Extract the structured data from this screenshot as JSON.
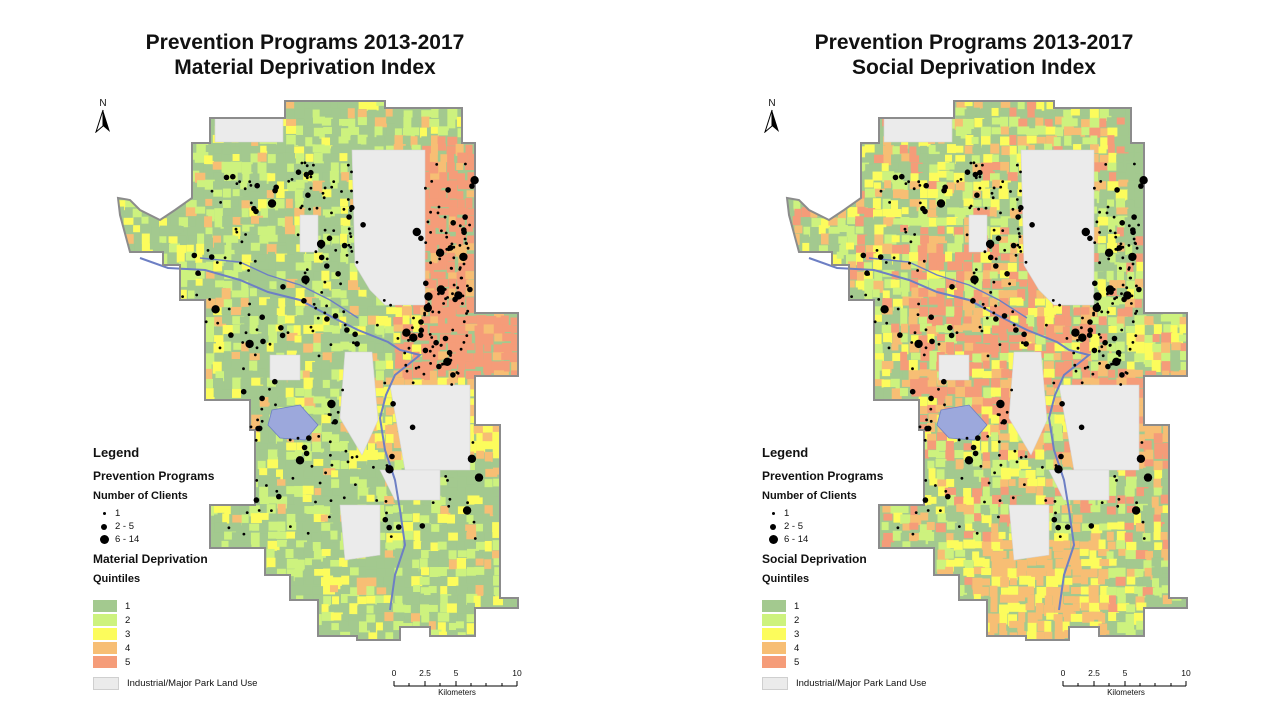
{
  "maps": [
    {
      "title_line1": "Prevention Programs 2013-2017",
      "title_line2": "Material Deprivation Index",
      "north_label": "N",
      "legend": {
        "title": "Legend",
        "layer": "Prevention Programs",
        "clients_label": "Number of Clients",
        "client_classes": [
          "1",
          "2 - 5",
          "6 - 14"
        ],
        "index_label": "Material Deprivation",
        "quintile_label": "Quintiles",
        "quintiles": [
          "1",
          "2",
          "3",
          "4",
          "5"
        ],
        "quintile_colors": [
          "#a3c98f",
          "#cdf27e",
          "#fcfc5c",
          "#f7be74",
          "#f59c79"
        ],
        "other_label": "Industrial/Major Park Land Use"
      },
      "scale": {
        "ticks": [
          "0",
          "2.5",
          "5",
          "10"
        ],
        "unit": "Kilometers"
      }
    },
    {
      "title_line1": "Prevention Programs 2013-2017",
      "title_line2": "Social Deprivation Index",
      "north_label": "N",
      "legend": {
        "title": "Legend",
        "layer": "Prevention Programs",
        "clients_label": "Number of Clients",
        "client_classes": [
          "1",
          "2 - 5",
          "6 - 14"
        ],
        "index_label": "Social Deprivation",
        "quintile_label": "Quintiles",
        "quintiles": [
          "1",
          "2",
          "3",
          "4",
          "5"
        ],
        "quintile_colors": [
          "#a3c98f",
          "#cdf27e",
          "#fcfc5c",
          "#f7be74",
          "#f59c79"
        ],
        "other_label": "Industrial/Major Park Land Use"
      },
      "scale": {
        "ticks": [
          "0",
          "2.5",
          "5",
          "10"
        ],
        "unit": "Kilometers"
      }
    }
  ],
  "colors": {
    "industrial": "#ebebeb",
    "boundary": "#8c8c8c",
    "river": "#6d7fc4",
    "reservoir": "#9ca8dc",
    "client_dot": "#000000"
  }
}
